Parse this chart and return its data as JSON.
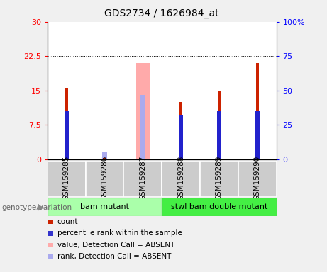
{
  "title": "GDS2734 / 1626984_at",
  "samples": [
    "GSM159285",
    "GSM159286",
    "GSM159287",
    "GSM159288",
    "GSM159289",
    "GSM159290"
  ],
  "count_values": [
    15.5,
    0.25,
    0.0,
    12.5,
    15.0,
    21.0
  ],
  "rank_values": [
    10.5,
    0.0,
    0.0,
    9.5,
    10.5,
    10.5
  ],
  "absent_value_values": [
    0.0,
    0.0,
    21.0,
    0.0,
    0.0,
    0.0
  ],
  "absent_rank_values": [
    0.0,
    1.5,
    14.0,
    0.0,
    0.0,
    0.0
  ],
  "count_absent_values": [
    0.0,
    0.25,
    0.0,
    0.0,
    0.0,
    0.0
  ],
  "ylim_left": [
    0,
    30
  ],
  "ylim_right": [
    0,
    100
  ],
  "yticks_left": [
    0,
    7.5,
    15,
    22.5,
    30
  ],
  "yticks_right": [
    0,
    25,
    50,
    75,
    100
  ],
  "ytick_labels_left": [
    "0",
    "7.5",
    "15",
    "22.5",
    "30"
  ],
  "ytick_labels_right": [
    "0",
    "25",
    "50",
    "75",
    "100%"
  ],
  "group1_samples": [
    0,
    1,
    2
  ],
  "group2_samples": [
    3,
    4,
    5
  ],
  "group1_label": "bam mutant",
  "group2_label": "stwl bam double mutant",
  "group_label_prefix": "genotype/variation",
  "legend_items": [
    {
      "label": "count",
      "color": "#cc2200"
    },
    {
      "label": "percentile rank within the sample",
      "color": "#3333cc"
    },
    {
      "label": "value, Detection Call = ABSENT",
      "color": "#ffaaaa"
    },
    {
      "label": "rank, Detection Call = ABSENT",
      "color": "#aaaaee"
    }
  ],
  "count_color": "#cc2200",
  "rank_color": "#2222cc",
  "absent_value_color": "#ffaaaa",
  "absent_rank_color": "#aaaaee",
  "background_color": "#f0f0f0",
  "plot_bg_color": "#ffffff",
  "group1_bg": "#aaffaa",
  "group2_bg": "#44ee44",
  "sample_box_bg": "#cccccc",
  "thin_bar_width": 0.08,
  "absent_bar_width": 0.35,
  "rank_square_size": 0.12
}
